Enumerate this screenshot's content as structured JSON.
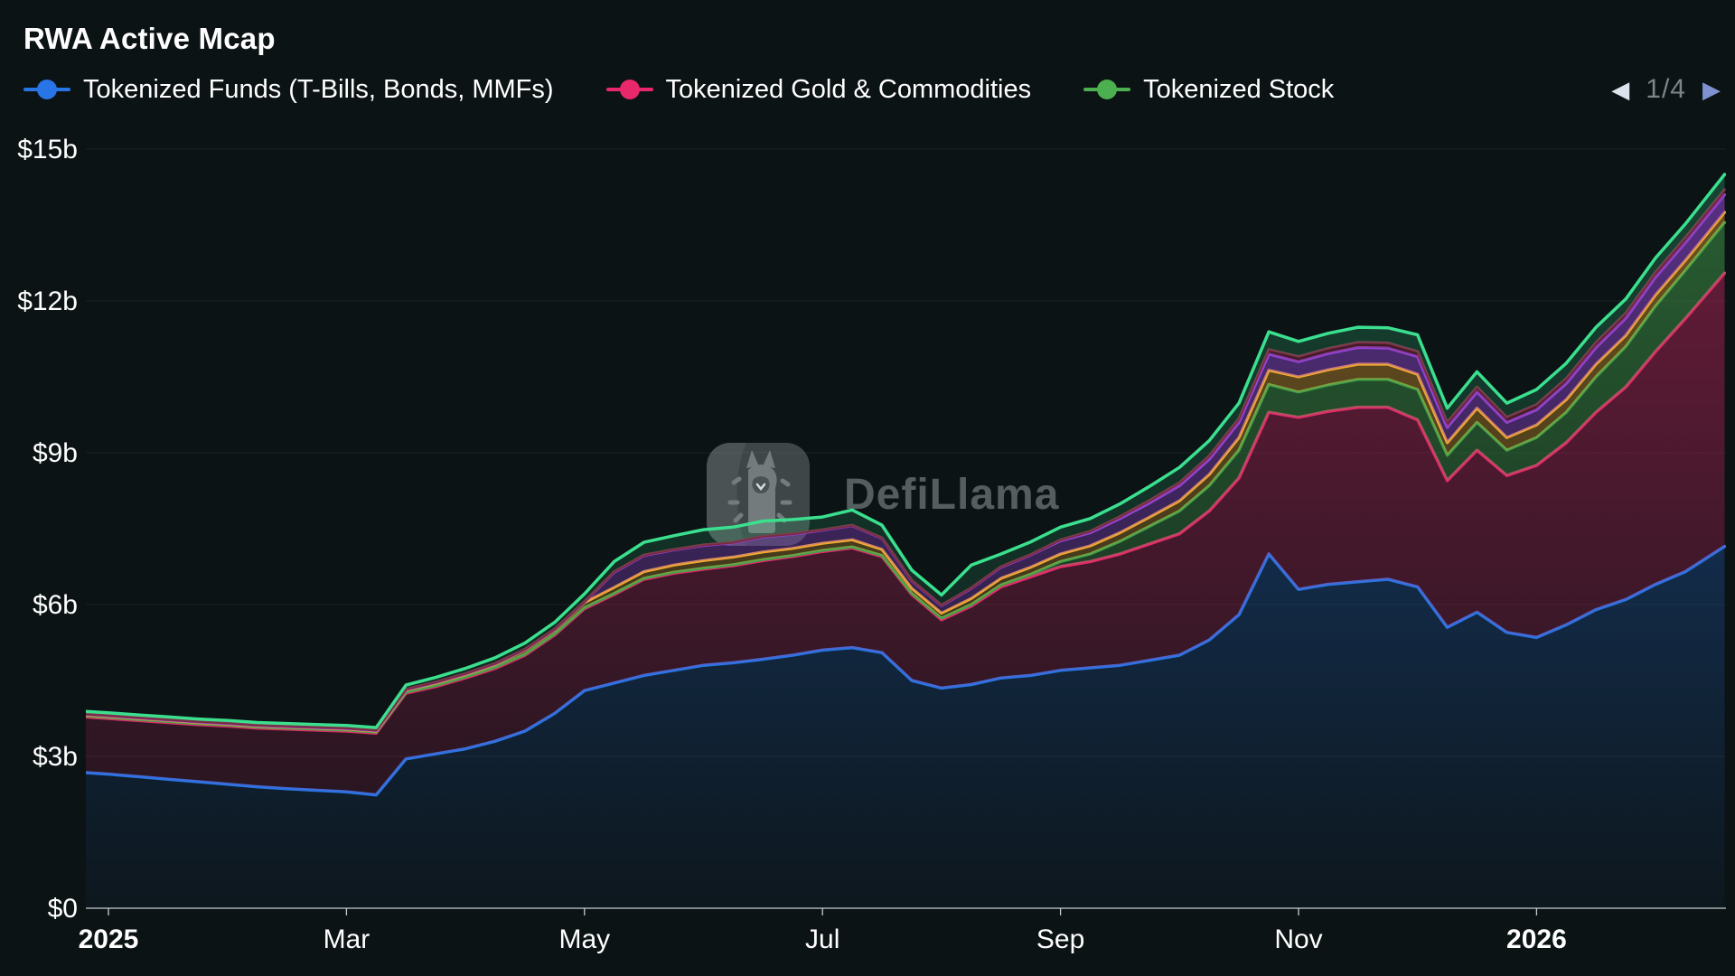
{
  "header": {
    "title": "RWA Active Mcap"
  },
  "legend": {
    "items": [
      {
        "label": "Tokenized Funds (T-Bills, Bonds, MMFs)",
        "color": "#2775e6"
      },
      {
        "label": "Tokenized Gold & Commodities",
        "color": "#e8286b"
      },
      {
        "label": "Tokenized Stock",
        "color": "#4caf50"
      }
    ],
    "pagination": {
      "current_page": "1/4",
      "prev_icon": "left-triangle",
      "next_icon": "right-triangle",
      "prev_color": "#dde3ec",
      "next_color": "#7e92d2",
      "text_color": "#7f848a"
    }
  },
  "watermark": {
    "text": "DefiLlama"
  },
  "axes": {
    "y_label_color": "#ffffff",
    "x_label_color": "#ffffff",
    "axis_line_color": "#c6cbd1",
    "grid_color": "rgba(255,255,255,0.06)"
  },
  "chart_data": {
    "type": "area",
    "stacked": true,
    "title": "RWA Active Mcap",
    "grid": true,
    "legend_position": "top",
    "x_unit": "months since Jan 2025",
    "xlim": [
      -0.2,
      13.58
    ],
    "ylim": [
      0,
      15
    ],
    "y_ticks": [
      {
        "label": "$0",
        "value": 0
      },
      {
        "label": "$3b",
        "value": 3
      },
      {
        "label": "$6b",
        "value": 6
      },
      {
        "label": "$9b",
        "value": 9
      },
      {
        "label": "$12b",
        "value": 12
      },
      {
        "label": "$15b",
        "value": 15
      }
    ],
    "x_ticks": [
      {
        "label": "2025",
        "value": 0,
        "bold": true
      },
      {
        "label": "Mar",
        "value": 2,
        "bold": false
      },
      {
        "label": "May",
        "value": 4,
        "bold": false
      },
      {
        "label": "Jul",
        "value": 6,
        "bold": false
      },
      {
        "label": "Sep",
        "value": 8,
        "bold": false
      },
      {
        "label": "Nov",
        "value": 10,
        "bold": false
      },
      {
        "label": "2026",
        "value": 12,
        "bold": true
      }
    ],
    "x": [
      -0.2,
      0,
      0.25,
      0.5,
      0.75,
      1,
      1.25,
      1.5,
      1.75,
      2,
      2.25,
      2.5,
      2.75,
      3,
      3.25,
      3.5,
      3.75,
      4,
      4.25,
      4.5,
      4.75,
      5,
      5.25,
      5.5,
      5.75,
      6,
      6.25,
      6.5,
      6.75,
      7,
      7.25,
      7.5,
      7.75,
      8,
      8.25,
      8.5,
      8.75,
      9,
      9.25,
      9.5,
      9.75,
      10,
      10.25,
      10.5,
      10.75,
      11,
      11.25,
      11.5,
      11.75,
      12,
      12.25,
      12.5,
      12.75,
      13,
      13.25,
      13.58
    ],
    "series": [
      {
        "name": "Tokenized Funds (T-Bills, Bonds, MMFs)",
        "color": "#2775e6",
        "line_width": 3.5,
        "fill_top_opacity": 0.5,
        "fill_bottom_opacity": 0.04,
        "values": [
          2.68,
          2.65,
          2.6,
          2.55,
          2.5,
          2.45,
          2.4,
          2.36,
          2.33,
          2.3,
          2.24,
          2.95,
          3.05,
          3.15,
          3.3,
          3.5,
          3.85,
          4.3,
          4.45,
          4.6,
          4.7,
          4.8,
          4.85,
          4.92,
          5.0,
          5.1,
          5.15,
          5.05,
          4.5,
          4.35,
          4.42,
          4.55,
          4.6,
          4.7,
          4.75,
          4.8,
          4.9,
          5.0,
          5.3,
          5.8,
          7.0,
          6.3,
          6.4,
          6.45,
          6.5,
          6.35,
          5.55,
          5.85,
          5.45,
          5.35,
          5.6,
          5.9,
          6.1,
          6.4,
          6.65,
          7.15
        ]
      },
      {
        "name": "Tokenized Gold & Commodities",
        "color": "#e8286b",
        "line_width": 3.5,
        "fill_top_opacity": 0.45,
        "fill_bottom_opacity": 0.08,
        "values": [
          1.1,
          1.1,
          1.11,
          1.12,
          1.13,
          1.15,
          1.16,
          1.18,
          1.19,
          1.2,
          1.22,
          1.3,
          1.33,
          1.4,
          1.44,
          1.5,
          1.55,
          1.62,
          1.75,
          1.9,
          1.92,
          1.9,
          1.92,
          1.95,
          1.95,
          1.95,
          1.97,
          1.9,
          1.7,
          1.35,
          1.55,
          1.8,
          1.95,
          2.05,
          2.1,
          2.2,
          2.3,
          2.4,
          2.55,
          2.7,
          2.8,
          3.4,
          3.42,
          3.45,
          3.4,
          3.3,
          2.9,
          3.2,
          3.1,
          3.4,
          3.6,
          3.9,
          4.2,
          4.6,
          5.0,
          5.4
        ]
      },
      {
        "name": "Tokenized Stock",
        "color": "#43a14b",
        "line_width": 3.2,
        "fill_top_opacity": 0.55,
        "fill_bottom_opacity": 0.12,
        "values": [
          0.02,
          0.02,
          0.02,
          0.02,
          0.02,
          0.02,
          0.02,
          0.02,
          0.02,
          0.02,
          0.02,
          0.02,
          0.02,
          0.02,
          0.02,
          0.02,
          0.02,
          0.02,
          0.02,
          0.02,
          0.02,
          0.02,
          0.02,
          0.02,
          0.02,
          0.02,
          0.02,
          0.02,
          0.02,
          0.03,
          0.03,
          0.04,
          0.05,
          0.1,
          0.15,
          0.25,
          0.35,
          0.45,
          0.5,
          0.55,
          0.55,
          0.5,
          0.52,
          0.55,
          0.55,
          0.6,
          0.5,
          0.55,
          0.5,
          0.55,
          0.6,
          0.7,
          0.8,
          0.9,
          0.95,
          1.0
        ]
      },
      {
        "name": "",
        "color": "#f2a92e",
        "line_width": 3.2,
        "fill_top_opacity": 0.45,
        "fill_bottom_opacity": 0.1,
        "values": [
          0.02,
          0.02,
          0.02,
          0.02,
          0.02,
          0.02,
          0.02,
          0.02,
          0.02,
          0.02,
          0.02,
          0.04,
          0.05,
          0.05,
          0.06,
          0.08,
          0.08,
          0.1,
          0.12,
          0.13,
          0.14,
          0.15,
          0.15,
          0.15,
          0.14,
          0.14,
          0.14,
          0.12,
          0.1,
          0.1,
          0.12,
          0.13,
          0.14,
          0.15,
          0.16,
          0.17,
          0.18,
          0.2,
          0.22,
          0.25,
          0.28,
          0.3,
          0.3,
          0.3,
          0.3,
          0.3,
          0.25,
          0.28,
          0.25,
          0.25,
          0.25,
          0.25,
          0.22,
          0.22,
          0.2,
          0.2
        ]
      },
      {
        "name": "",
        "color": "#9345d6",
        "line_width": 3.2,
        "fill_top_opacity": 0.6,
        "fill_bottom_opacity": 0.1,
        "values": [
          0.01,
          0.01,
          0.01,
          0.01,
          0.01,
          0.01,
          0.01,
          0.01,
          0.01,
          0.01,
          0.01,
          0.01,
          0.01,
          0.01,
          0.01,
          0.01,
          0.01,
          0.01,
          0.3,
          0.32,
          0.3,
          0.3,
          0.28,
          0.3,
          0.28,
          0.26,
          0.28,
          0.22,
          0.15,
          0.15,
          0.2,
          0.22,
          0.24,
          0.26,
          0.26,
          0.28,
          0.28,
          0.3,
          0.3,
          0.3,
          0.32,
          0.3,
          0.32,
          0.33,
          0.32,
          0.35,
          0.3,
          0.32,
          0.3,
          0.3,
          0.32,
          0.33,
          0.34,
          0.35,
          0.35,
          0.35
        ]
      },
      {
        "name": "",
        "color": "#7d2741",
        "line_width": 3.0,
        "fill_top_opacity": 0.55,
        "fill_bottom_opacity": 0.1,
        "values": [
          0.01,
          0.01,
          0.01,
          0.01,
          0.01,
          0.01,
          0.01,
          0.01,
          0.01,
          0.01,
          0.01,
          0.01,
          0.01,
          0.01,
          0.01,
          0.01,
          0.01,
          0.01,
          0.01,
          0.01,
          0.01,
          0.01,
          0.01,
          0.01,
          0.01,
          0.01,
          0.01,
          0.01,
          0.01,
          0.01,
          0.01,
          0.01,
          0.01,
          0.02,
          0.03,
          0.04,
          0.05,
          0.06,
          0.07,
          0.08,
          0.09,
          0.1,
          0.1,
          0.1,
          0.1,
          0.1,
          0.1,
          0.1,
          0.1,
          0.1,
          0.1,
          0.1,
          0.1,
          0.1,
          0.1,
          0.1
        ]
      },
      {
        "name": "",
        "color": "#3be08f",
        "line_width": 3.5,
        "fill_top_opacity": 0.25,
        "fill_bottom_opacity": 0.04,
        "values": [
          0.05,
          0.05,
          0.05,
          0.05,
          0.05,
          0.05,
          0.05,
          0.05,
          0.05,
          0.05,
          0.05,
          0.08,
          0.09,
          0.1,
          0.11,
          0.12,
          0.13,
          0.15,
          0.2,
          0.25,
          0.27,
          0.3,
          0.3,
          0.3,
          0.28,
          0.25,
          0.3,
          0.25,
          0.2,
          0.2,
          0.45,
          0.25,
          0.25,
          0.25,
          0.25,
          0.25,
          0.28,
          0.3,
          0.3,
          0.3,
          0.35,
          0.3,
          0.3,
          0.3,
          0.3,
          0.33,
          0.28,
          0.3,
          0.28,
          0.3,
          0.3,
          0.3,
          0.28,
          0.28,
          0.27,
          0.3
        ]
      }
    ]
  }
}
